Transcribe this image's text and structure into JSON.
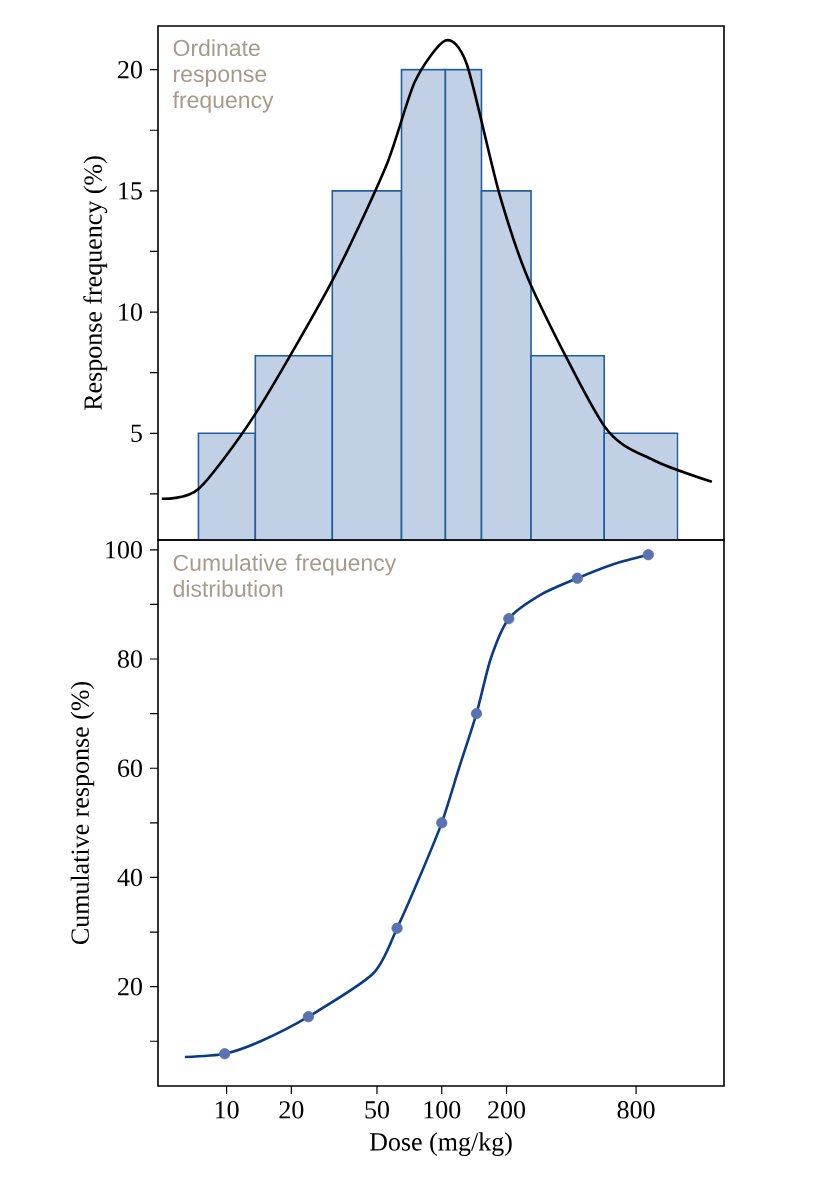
{
  "chart_data": [
    {
      "type": "histogram",
      "ylabel": "Response frequency (%)",
      "annotations": [
        "Ordinate response frequency"
      ],
      "log": "x",
      "xlim": [
        4.8,
        2050
      ],
      "ylim": [
        0.6,
        21.8
      ],
      "xticks": [
        10,
        20,
        50,
        100,
        200,
        800
      ],
      "yticks": [
        {
          "value": 2.5,
          "label": null
        },
        5,
        {
          "value": 7.5,
          "label": null
        },
        10,
        {
          "value": 12.5,
          "label": null
        },
        15,
        {
          "value": 17.5,
          "label": null
        },
        20
      ],
      "tick_labels": "y",
      "series": [
        {
          "bins": [
            7.4,
            13.6,
            31,
            65,
            104,
            153,
            260,
            569,
            1248
          ],
          "values": [
            5,
            8.2,
            15,
            20,
            20,
            15,
            8.2,
            5
          ],
          "color": "#c2d0e6"
        },
        {
          "type": "line",
          "color": "#000000",
          "marker": "none",
          "x": [
            5.0,
            7.4,
            13.6,
            31,
            55,
            75,
            104,
            131,
            185,
            260,
            569,
            960,
            1800
          ],
          "values": [
            2.3,
            2.7,
            5.8,
            11.3,
            16.0,
            19.5,
            21.2,
            20.2,
            14.9,
            11.1,
            5.3,
            3.9,
            3.0
          ]
        }
      ]
    },
    {
      "type": "line",
      "xlabel": "Dose (mg/kg)",
      "ylabel": "Cumulative response (%)",
      "annotations": [
        "Cumulative frequency distribution"
      ],
      "log": "x",
      "xlim": [
        4.8,
        2050
      ],
      "ylim": [
        1.8,
        101.8
      ],
      "xticks": [
        10,
        20,
        50,
        100,
        200,
        800
      ],
      "yticks": [
        {
          "value": 10,
          "label": null
        },
        20,
        {
          "value": 30,
          "label": null
        },
        40,
        {
          "value": 50,
          "label": null
        },
        60,
        {
          "value": 70,
          "label": null
        },
        80,
        {
          "value": 90,
          "label": null
        },
        100
      ],
      "series": [
        {
          "color": "#0a3a8a",
          "marker": "none",
          "x": [
            6.4,
            9.8,
            14.4,
            24,
            48,
            62,
            78,
            100,
            120,
            145,
            169,
            205,
            289,
            427,
            632,
            912
          ],
          "values": [
            7.1,
            7.7,
            10,
            14.5,
            22.4,
            30.7,
            39.6,
            50,
            59.9,
            70,
            80.1,
            87.4,
            91.8,
            94.8,
            97.4,
            99.1
          ]
        },
        {
          "type": "scatter",
          "color": "#5a72b0",
          "marker": "circle",
          "x": [
            9.8,
            24,
            62,
            100,
            145,
            205,
            427,
            912
          ],
          "values": [
            7.7,
            14.5,
            30.7,
            50,
            70,
            87.4,
            94.8,
            99.1
          ]
        }
      ]
    }
  ]
}
